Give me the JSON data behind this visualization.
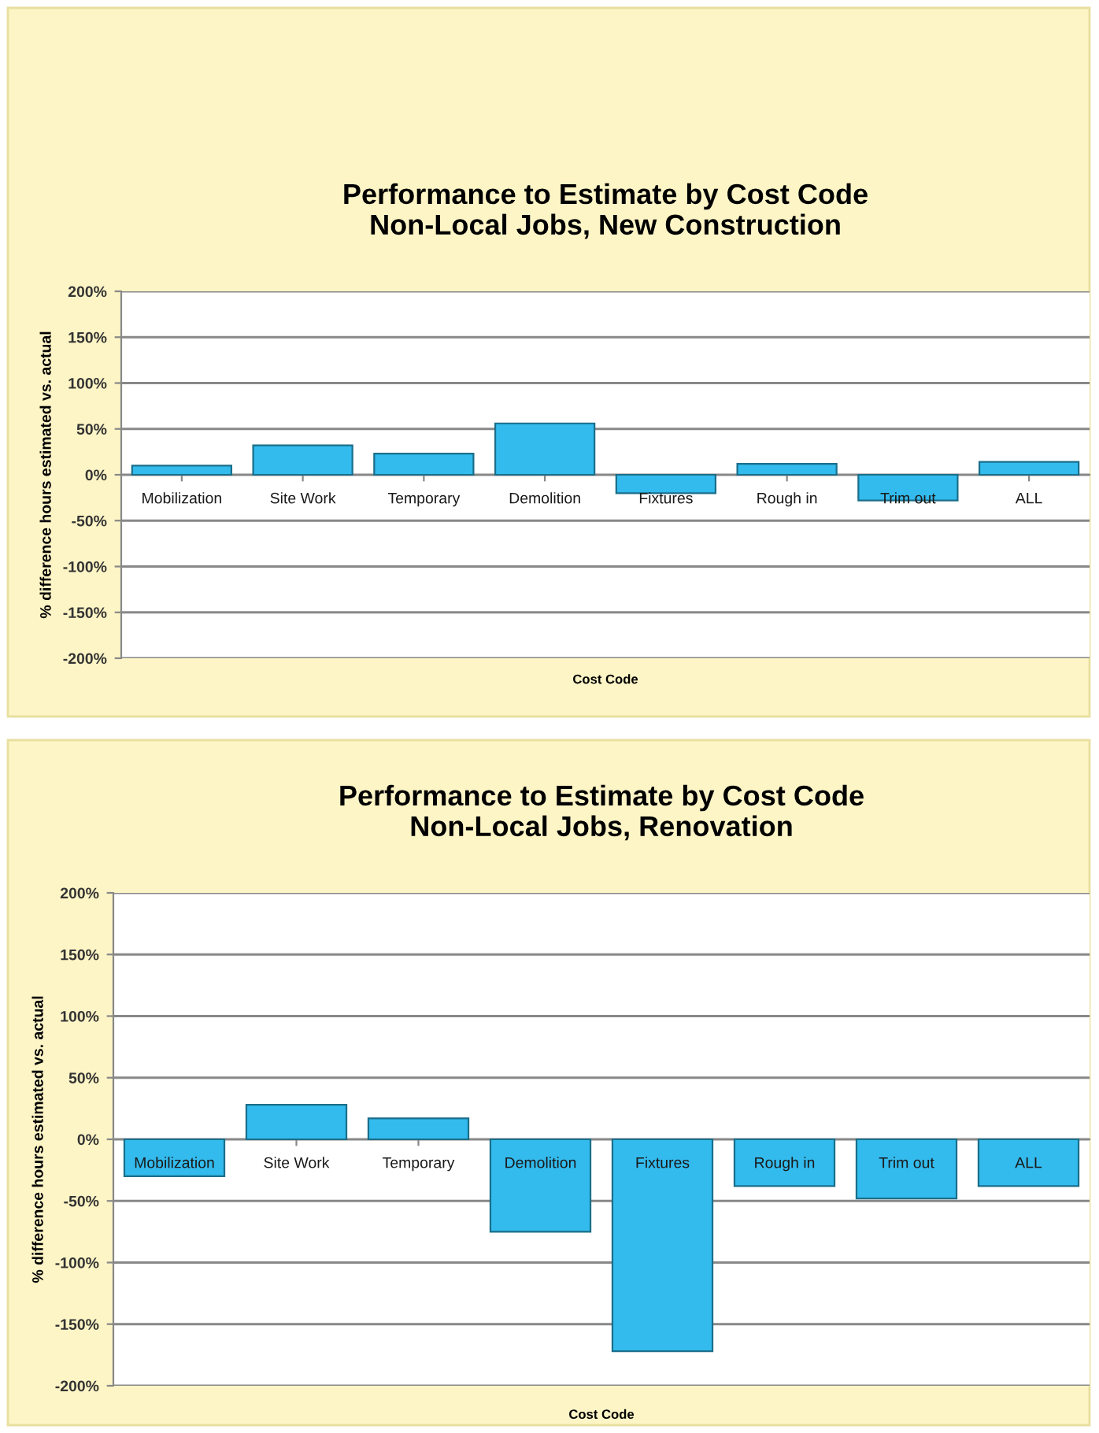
{
  "chart_data": [
    {
      "type": "bar",
      "title": "Performance to Estimate by Cost Code\nNon-Local Jobs, New Construction",
      "xlabel": "Cost Code",
      "ylabel": "% difference hours estimated vs. actual",
      "categories": [
        "Mobilization",
        "Site Work",
        "Temporary",
        "Demolition",
        "Fixtures",
        "Rough in",
        "Trim out",
        "ALL"
      ],
      "values": [
        10,
        32,
        23,
        56,
        -20,
        12,
        -28,
        14
      ],
      "color": "#33bbee",
      "ylim": [
        -200,
        200
      ],
      "yticks": [
        {
          "value": -200,
          "label": "-200%"
        },
        {
          "value": -150,
          "label": "-150%"
        },
        {
          "value": -100,
          "label": "-100%"
        },
        {
          "value": -50,
          "label": "-50%"
        },
        {
          "value": 0,
          "label": "0%"
        },
        {
          "value": 50,
          "label": "50%"
        },
        {
          "value": 100,
          "label": "100%"
        },
        {
          "value": 150,
          "label": "150%"
        },
        {
          "value": 200,
          "label": "200%"
        }
      ],
      "grid": "y",
      "legend": false
    },
    {
      "type": "bar",
      "title": "Performance to Estimate by Cost Code\nNon-Local Jobs, Renovation",
      "xlabel": "Cost Code",
      "ylabel": "% difference hours estimated vs. actual",
      "categories": [
        "Mobilization",
        "Site Work",
        "Temporary",
        "Demolition",
        "Fixtures",
        "Rough in",
        "Trim out",
        "ALL"
      ],
      "values": [
        -30,
        28,
        17,
        -75,
        -172,
        -38,
        -48,
        -38
      ],
      "color": "#33bbee",
      "ylim": [
        -200,
        200
      ],
      "yticks": [
        {
          "value": -200,
          "label": "-200%"
        },
        {
          "value": -150,
          "label": "-150%"
        },
        {
          "value": -100,
          "label": "-100%"
        },
        {
          "value": -50,
          "label": "-50%"
        },
        {
          "value": 0,
          "label": "0%"
        },
        {
          "value": 50,
          "label": "50%"
        },
        {
          "value": 100,
          "label": "100%"
        },
        {
          "value": 150,
          "label": "150%"
        },
        {
          "value": 200,
          "label": "200%"
        }
      ],
      "grid": "y",
      "legend": false
    }
  ]
}
